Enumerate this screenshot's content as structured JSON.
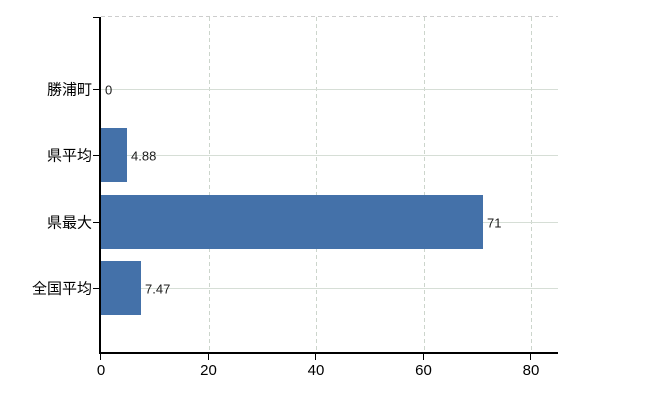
{
  "chart_data": {
    "type": "bar",
    "orientation": "horizontal",
    "categories": [
      "勝浦町",
      "県平均",
      "県最大",
      "全国平均"
    ],
    "values": [
      0,
      4.88,
      71,
      7.47
    ],
    "value_labels": [
      "0",
      "4.88",
      "71",
      "7.47"
    ],
    "x_tick_values": [
      0,
      20,
      40,
      60,
      80
    ],
    "x_tick_labels": [
      "0",
      "20",
      "40",
      "60",
      "80"
    ],
    "xlim": [
      0,
      85
    ],
    "grid": true,
    "legend": false,
    "colors": {
      "bar": "#4471a9",
      "axis": "#000000",
      "grid_solid": "#d6ded6",
      "grid_dashed": "#ccd5cc",
      "border_dashed": "#cdcdcd",
      "text": "#000000",
      "value_text": "#1c1c1c",
      "background": "#ffffff"
    }
  }
}
